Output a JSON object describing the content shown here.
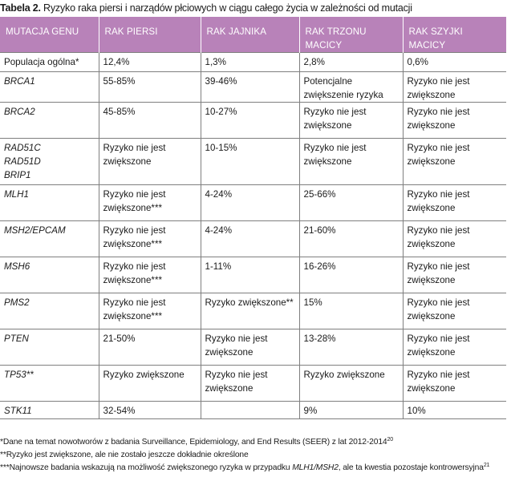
{
  "caption": {
    "label": "Tabela 2.",
    "text": " Ryzyko raka piersi i narządów płciowych w ciągu całego życia w zależności od mutacji"
  },
  "table": {
    "headers": [
      "MUTACJA GENU",
      "RAK PIERSI",
      "RAK JAJNIKA",
      "RAK TRZONU MACICY",
      "RAK SZYJKI MACICY"
    ],
    "rows": [
      {
        "gene": [
          "Populacja ogólna*"
        ],
        "breast": [
          "12,4%"
        ],
        "ovary": [
          "1,3%"
        ],
        "uterus": [
          "2,8%"
        ],
        "cervix": [
          "0,6%"
        ]
      },
      {
        "gene": [
          "BRCA1"
        ],
        "breast": [
          "55-85%"
        ],
        "ovary": [
          "39-46%"
        ],
        "uterus": [
          "Potencjalne",
          "zwiększenie ryzyka"
        ],
        "cervix": [
          "Ryzyko nie jest",
          "zwiększone"
        ]
      },
      {
        "gene": [
          "BRCA2"
        ],
        "breast": [
          "45-85%"
        ],
        "ovary": [
          "10-27%"
        ],
        "uterus": [
          "Ryzyko nie jest",
          "zwiększone"
        ],
        "cervix": [
          "Ryzyko nie jest",
          "zwiększone"
        ]
      },
      {
        "gene": [
          "RAD51C",
          "RAD51D",
          "BRIP1"
        ],
        "breast": [
          "Ryzyko nie jest",
          "zwiększone"
        ],
        "ovary": [
          "10-15%"
        ],
        "uterus": [
          "Ryzyko nie jest",
          "zwiększone"
        ],
        "cervix": [
          "Ryzyko nie jest",
          "zwiększone"
        ]
      },
      {
        "gene": [
          "MLH1"
        ],
        "breast": [
          "Ryzyko nie jest",
          "zwiększone***"
        ],
        "ovary": [
          "4-24%"
        ],
        "uterus": [
          "25-66%"
        ],
        "cervix": [
          "Ryzyko nie jest",
          "zwiększone"
        ]
      },
      {
        "gene": [
          "MSH2/EPCAM"
        ],
        "breast": [
          "Ryzyko nie jest",
          "zwiększone***"
        ],
        "ovary": [
          "4-24%"
        ],
        "uterus": [
          "21-60%"
        ],
        "cervix": [
          "Ryzyko nie jest",
          "zwiększone"
        ]
      },
      {
        "gene": [
          "MSH6"
        ],
        "breast": [
          "Ryzyko nie jest",
          "zwiększone***"
        ],
        "ovary": [
          "1-11%"
        ],
        "uterus": [
          "16-26%"
        ],
        "cervix": [
          "Ryzyko nie jest",
          "zwiększone"
        ]
      },
      {
        "gene": [
          "PMS2"
        ],
        "breast": [
          "Ryzyko nie jest",
          "zwiększone***"
        ],
        "ovary": [
          "Ryzyko zwiększone**"
        ],
        "uterus": [
          "15%"
        ],
        "cervix": [
          "Ryzyko nie jest",
          "zwiększone"
        ]
      },
      {
        "gene": [
          "PTEN"
        ],
        "breast": [
          "21-50%"
        ],
        "ovary": [
          "Ryzyko nie jest",
          "zwiększone"
        ],
        "uterus": [
          "13-28%"
        ],
        "cervix": [
          "Ryzyko nie jest",
          "zwiększone"
        ]
      },
      {
        "gene": [
          "TP53**"
        ],
        "breast": [
          "Ryzyko zwiększone"
        ],
        "ovary": [
          "Ryzyko nie jest",
          "zwiększone"
        ],
        "uterus": [
          "Ryzyko zwiększone"
        ],
        "cervix": [
          "Ryzyko nie jest",
          "zwiększone"
        ]
      },
      {
        "gene": [
          "STK11"
        ],
        "breast": [
          "32-54%"
        ],
        "ovary": [
          ""
        ],
        "uterus": [
          "9%"
        ],
        "cervix": [
          "10%"
        ]
      }
    ]
  },
  "footnotes": {
    "f1_text": "*Dane na temat nowotworów z badania Surveillance, Epidemiology, and End Results (SEER) z lat 2012-2014",
    "f1_ref": "20",
    "f2_text": "**Ryzyko jest zwiększone, ale nie zostało jeszcze dokładnie określone",
    "f3_text_a": "***Najnowsze badania wskazują na możliwość zwiększonego ryzyka w przypadku ",
    "f3_italic": "MLH1/MSH2",
    "f3_text_b": ", ale ta kwestia pozostaje kontrowersyjna",
    "f3_ref": "21"
  },
  "colors": {
    "header_bg": "#b882b9",
    "header_text": "#ffffff",
    "grid": "#7f7f7f"
  }
}
